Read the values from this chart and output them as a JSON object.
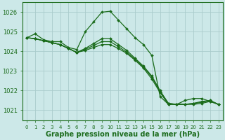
{
  "background_color": "#cce8e8",
  "grid_color": "#aacccc",
  "line_color": "#1a6b1a",
  "xlabel": "Graphe pression niveau de la mer (hPa)",
  "xlabel_fontsize": 7,
  "ylim": [
    1020.5,
    1026.5
  ],
  "xlim": [
    -0.5,
    23.5
  ],
  "yticks": [
    1021,
    1022,
    1023,
    1024,
    1025,
    1026
  ],
  "xticks": [
    0,
    1,
    2,
    3,
    4,
    5,
    6,
    7,
    8,
    9,
    10,
    11,
    12,
    13,
    14,
    15,
    16,
    17,
    18,
    19,
    20,
    21,
    22,
    23
  ],
  "series": [
    [
      1024.7,
      1024.9,
      1024.6,
      1024.5,
      1024.5,
      1024.2,
      1024.1,
      1025.0,
      1025.5,
      1026.0,
      1026.05,
      1025.6,
      1025.15,
      1024.7,
      1024.35,
      1023.8,
      1021.7,
      1021.3,
      1021.3,
      1021.5,
      1021.6,
      1021.6,
      1021.45,
      1021.3
    ],
    [
      1024.7,
      1024.65,
      1024.55,
      1024.45,
      1024.35,
      1024.15,
      1023.95,
      1024.05,
      1024.2,
      1024.35,
      1024.35,
      1024.15,
      1023.9,
      1023.55,
      1023.15,
      1022.6,
      1021.9,
      1021.3,
      1021.3,
      1021.3,
      1021.3,
      1021.35,
      1021.45,
      1021.3
    ],
    [
      1024.7,
      1024.65,
      1024.55,
      1024.45,
      1024.35,
      1024.15,
      1023.95,
      1024.1,
      1024.3,
      1024.5,
      1024.5,
      1024.25,
      1023.95,
      1023.6,
      1023.2,
      1022.7,
      1021.95,
      1021.35,
      1021.3,
      1021.3,
      1021.35,
      1021.4,
      1021.5,
      1021.3
    ],
    [
      1024.7,
      1024.65,
      1024.55,
      1024.45,
      1024.35,
      1024.15,
      1023.95,
      1024.15,
      1024.4,
      1024.65,
      1024.65,
      1024.35,
      1024.05,
      1023.65,
      1023.25,
      1022.75,
      1022.0,
      1021.35,
      1021.3,
      1021.3,
      1021.35,
      1021.45,
      1021.5,
      1021.3
    ]
  ],
  "marker": "D",
  "marker_size": 2.0,
  "line_width": 0.9,
  "tick_fontsize": 6,
  "tick_color": "#1a6b1a",
  "spine_color": "#1a6b1a"
}
